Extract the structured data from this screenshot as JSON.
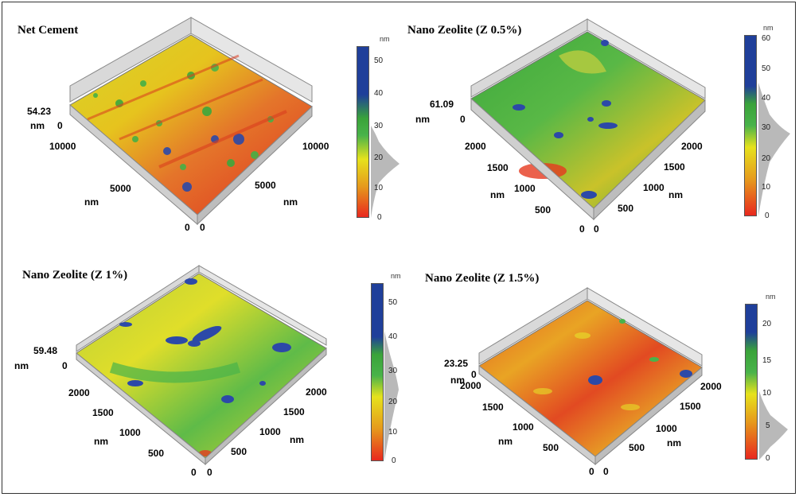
{
  "panels": [
    {
      "title": "Net Cement",
      "z_max": "54.23",
      "z_zero": "0",
      "x_labels": [
        "10000",
        "5000",
        "0"
      ],
      "y_labels": [
        "10000",
        "5000",
        "0"
      ],
      "axis_unit": "nm",
      "colorbar": {
        "unit": "nm",
        "ticks": [
          "50",
          "40",
          "30",
          "20",
          "10",
          "0"
        ]
      }
    },
    {
      "title": "Nano Zeolite  (Z 0.5%)",
      "z_max": "61.09",
      "z_zero": "0",
      "x_labels": [
        "2000",
        "1500",
        "1000",
        "500",
        "0"
      ],
      "y_labels": [
        "2000",
        "1500",
        "1000",
        "500",
        "0"
      ],
      "axis_unit": "nm",
      "colorbar": {
        "unit": "nm",
        "ticks": [
          "60",
          "50",
          "40",
          "30",
          "20",
          "10",
          "0"
        ]
      }
    },
    {
      "title": "Nano Zeolite  (Z 1%)",
      "z_max": "59.48",
      "z_zero": "0",
      "x_labels": [
        "2000",
        "1500",
        "1000",
        "500",
        "0"
      ],
      "y_labels": [
        "2000",
        "1500",
        "1000",
        "500",
        "0"
      ],
      "axis_unit": "nm",
      "colorbar": {
        "unit": "nm",
        "ticks": [
          "50",
          "40",
          "30",
          "20",
          "10",
          "0"
        ]
      }
    },
    {
      "title": "Nano Zeolite  (Z 1.5%)",
      "z_max": "23.25",
      "z_zero": "0",
      "x_labels": [
        "2000",
        "1500",
        "1000",
        "500",
        "0"
      ],
      "y_labels": [
        "2000",
        "1500",
        "1000",
        "500",
        "0"
      ],
      "axis_unit": "nm",
      "colorbar": {
        "unit": "nm",
        "ticks": [
          "20",
          "15",
          "10",
          "5",
          "0"
        ]
      }
    }
  ],
  "colors": {
    "scale_top": "#1f3f9a",
    "scale_mid": "#3aa33a",
    "scale_yellow": "#e6e21c",
    "scale_bottom": "#e8281e"
  }
}
